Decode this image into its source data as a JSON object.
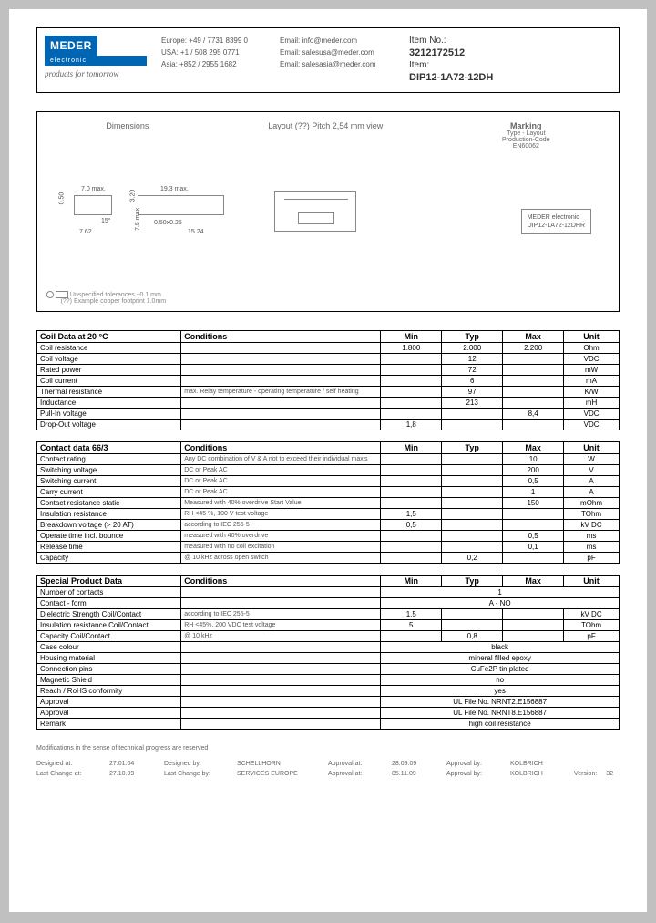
{
  "header": {
    "logo_main": "MEDER",
    "logo_sub": "electronic",
    "slogan": "products for tomorrow",
    "contacts_region": [
      {
        "region": "Europe:",
        "phone": "+49 / 7731 8399 0"
      },
      {
        "region": "USA:",
        "phone": "+1 / 508 295 0771"
      },
      {
        "region": "Asia:",
        "phone": "+852 / 2955 1682"
      }
    ],
    "contacts_email": [
      {
        "label": "Email:",
        "value": "info@meder.com"
      },
      {
        "label": "Email:",
        "value": "salesusa@meder.com"
      },
      {
        "label": "Email:",
        "value": "salesasia@meder.com"
      }
    ],
    "item_no_label": "Item No.:",
    "item_no": "3212172512",
    "item_label": "Item:",
    "item": "DIP12-1A72-12DH"
  },
  "drawing": {
    "dim_label": "Dimensions",
    "layout_label": "Layout (??) Pitch 2,54 mm view",
    "marking_label": "Marking",
    "marking_sub1": "Type - Layout",
    "marking_sub2": "Production-Code",
    "marking_sub3": "EN60062",
    "marking_box1": "MEDER electronic",
    "marking_box2": "DIP12-1A72-12DHR",
    "dims": {
      "w1": "7.0 max.",
      "w2": "19.3 max.",
      "h1": "0.50",
      "h2": "3.20",
      "h3": "7.5 max",
      "p1": "7.62",
      "p2": "15.24",
      "pin": "0.50x0.25",
      "ang": "15°"
    },
    "note1": "Unspecified tolerances ±0.1 mm",
    "note2": "(??) Example copper footprint 1.0mm"
  },
  "table1": {
    "title": "Coil Data at 20 °C",
    "headers": [
      "Conditions",
      "Min",
      "Typ",
      "Max",
      "Unit"
    ],
    "rows": [
      {
        "label": "Coil resistance",
        "cond": "",
        "min": "1.800",
        "typ": "2.000",
        "max": "2.200",
        "unit": "Ohm"
      },
      {
        "label": "Coil voltage",
        "cond": "",
        "min": "",
        "typ": "12",
        "max": "",
        "unit": "VDC"
      },
      {
        "label": "Rated power",
        "cond": "",
        "min": "",
        "typ": "72",
        "max": "",
        "unit": "mW"
      },
      {
        "label": "Coil current",
        "cond": "",
        "min": "",
        "typ": "6",
        "max": "",
        "unit": "mA"
      },
      {
        "label": "Thermal resistance",
        "cond": "max. Relay temperature - operating temperature / self heating",
        "min": "",
        "typ": "97",
        "max": "",
        "unit": "K/W"
      },
      {
        "label": "Inductance",
        "cond": "",
        "min": "",
        "typ": "213",
        "max": "",
        "unit": "mH"
      },
      {
        "label": "Pull-In voltage",
        "cond": "",
        "min": "",
        "typ": "",
        "max": "8,4",
        "unit": "VDC"
      },
      {
        "label": "Drop-Out voltage",
        "cond": "",
        "min": "1,8",
        "typ": "",
        "max": "",
        "unit": "VDC"
      }
    ]
  },
  "table2": {
    "title": "Contact data  66/3",
    "headers": [
      "Conditions",
      "Min",
      "Typ",
      "Max",
      "Unit"
    ],
    "rows": [
      {
        "label": "Contact rating",
        "cond": "Any DC combination of V & A not to exceed their individual max's",
        "min": "",
        "typ": "",
        "max": "10",
        "unit": "W"
      },
      {
        "label": "Switching voltage",
        "cond": "DC or Peak AC",
        "min": "",
        "typ": "",
        "max": "200",
        "unit": "V"
      },
      {
        "label": "Switching current",
        "cond": "DC or Peak AC",
        "min": "",
        "typ": "",
        "max": "0,5",
        "unit": "A"
      },
      {
        "label": "Carry current",
        "cond": "DC or Peak AC",
        "min": "",
        "typ": "",
        "max": "1",
        "unit": "A"
      },
      {
        "label": "Contact resistance static",
        "cond": "Measured with 40% overdrive Start Value",
        "min": "",
        "typ": "",
        "max": "150",
        "unit": "mOhm"
      },
      {
        "label": "Insulation resistance",
        "cond": "RH <45 %, 100 V test voltage",
        "min": "1,5",
        "typ": "",
        "max": "",
        "unit": "TOhm"
      },
      {
        "label": "Breakdown voltage   (> 20 AT)",
        "cond": "according to IEC 255-5",
        "min": "0,5",
        "typ": "",
        "max": "",
        "unit": "kV DC"
      },
      {
        "label": "Operate time incl. bounce",
        "cond": "measured with 40% overdrive",
        "min": "",
        "typ": "",
        "max": "0,5",
        "unit": "ms"
      },
      {
        "label": "Release time",
        "cond": "measured with no coil excitation",
        "min": "",
        "typ": "",
        "max": "0,1",
        "unit": "ms"
      },
      {
        "label": "Capacity",
        "cond": "@ 10 kHz across open switch",
        "min": "",
        "typ": "0,2",
        "max": "",
        "unit": "pF"
      }
    ]
  },
  "table3": {
    "title": "Special Product Data",
    "headers": [
      "Conditions",
      "Min",
      "Typ",
      "Max",
      "Unit"
    ],
    "rows_top": [
      {
        "label": "Number of contacts",
        "cond": "",
        "span": "1"
      },
      {
        "label": "Contact - form",
        "cond": "",
        "span": "A - NO"
      }
    ],
    "rows_mid": [
      {
        "label": "Dielectric Strength Coil/Contact",
        "cond": "according to IEC 255-5",
        "min": "1,5",
        "typ": "",
        "max": "",
        "unit": "kV DC"
      },
      {
        "label": "Insulation resistance Coil/Contact",
        "cond": "RH <45%, 200 VDC test voltage",
        "min": "5",
        "typ": "",
        "max": "",
        "unit": "TOhm"
      },
      {
        "label": "Capacity Coil/Contact",
        "cond": "@ 10 kHz",
        "min": "",
        "typ": "0,8",
        "max": "",
        "unit": "pF"
      }
    ],
    "rows_bot": [
      {
        "label": "Case colour",
        "cond": "",
        "span": "black"
      },
      {
        "label": "Housing material",
        "cond": "",
        "span": "mineral filled epoxy"
      },
      {
        "label": "Connection pins",
        "cond": "",
        "span": "CuFe2P tin plated"
      },
      {
        "label": "Magnetic Shield",
        "cond": "",
        "span": "no"
      },
      {
        "label": "Reach / RoHS conformity",
        "cond": "",
        "span": "yes"
      },
      {
        "label": "Approval",
        "cond": "",
        "span": "UL File No. NRNT2.E156887"
      },
      {
        "label": "Approval",
        "cond": "",
        "span": "UL File No. NRNT8.E156887"
      },
      {
        "label": "Remark",
        "cond": "",
        "span": "high coil resistance"
      }
    ]
  },
  "footer": {
    "note": "Modifications in the sense of technical progress are reserved",
    "row1": {
      "l1": "Designed at:",
      "v1": "27.01.04",
      "l2": "Designed by:",
      "v2": "SCHELLHORN",
      "l3": "Approval at:",
      "v3": "28.09.09",
      "l4": "Approval by:",
      "v4": "KOLBRICH"
    },
    "row2": {
      "l1": "Last Change at:",
      "v1": "27.10.09",
      "l2": "Last Change by:",
      "v2": "SERVICES EUROPE",
      "l3": "Approval at:",
      "v3": "05.11.09",
      "l4": "Approval by:",
      "v4": "KOLBRICH",
      "l5": "Version:",
      "v5": "32"
    }
  }
}
